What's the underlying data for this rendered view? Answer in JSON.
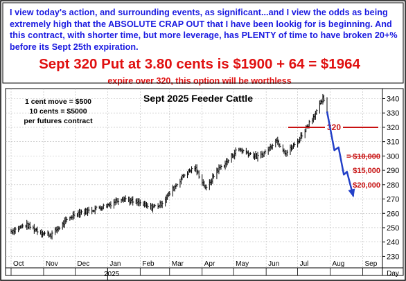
{
  "header": {
    "note": "I view today's action, and surrounding events, as significant...and I view the odds as being extremely high that the ABSOLUTE CRAP OUT that I have been lookig for is beginning. And this contract, with shorter time, but more leverage, has PLENTY of time to have broken 20+% before its Sept 25th expiration.",
    "headline": "Sept 320 Put at 3.80 cents is $1900 + 64 = $1964",
    "subline": "expire over 320, this option will be worthless"
  },
  "chart_data": {
    "type": "bar",
    "title": "Sept 2025 Feeder Cattle",
    "annotations": {
      "cent_move": "1 cent move = $500",
      "ten_cents": "10 cents = $5000",
      "per_contract": "per futures contract",
      "strike_label": "320",
      "target_10k": "$10,000",
      "target_15k": "$15,000",
      "target_20k": "$20,000"
    },
    "y_axis": {
      "ticks": [
        230,
        240,
        250,
        260,
        270,
        280,
        290,
        300,
        310,
        320,
        330,
        340
      ],
      "ylim": [
        222,
        347
      ]
    },
    "x_axis": {
      "months": [
        "Oct",
        "Nov",
        "Dec",
        "Jan",
        "Feb",
        "Mar",
        "Apr",
        "May",
        "Jun",
        "Jul",
        "Aug",
        "Sep"
      ],
      "year_label": "2025",
      "unit_label": "Day"
    },
    "strike_price": 320,
    "projection_path": [
      {
        "x": "Jul 29",
        "y": 331
      },
      {
        "x": "Aug 5",
        "y": 304
      },
      {
        "x": "Aug 9",
        "y": 306
      },
      {
        "x": "Aug 14",
        "y": 287
      },
      {
        "x": "Aug 17",
        "y": 289
      },
      {
        "x": "Aug 23",
        "y": 272
      }
    ],
    "target_levels": [
      {
        "label": "$10,000",
        "price": 300
      },
      {
        "label": "$15,000",
        "price": 290
      },
      {
        "label": "$20,000",
        "price": 280
      }
    ],
    "price_series": [
      {
        "date": "Oct 1",
        "close": 247.5
      },
      {
        "date": "Oct 15",
        "close": 252
      },
      {
        "date": "Nov 1",
        "close": 246
      },
      {
        "date": "Nov 8",
        "close": 245
      },
      {
        "date": "Nov 20",
        "close": 253
      },
      {
        "date": "Dec 1",
        "close": 260
      },
      {
        "date": "Dec 15",
        "close": 262
      },
      {
        "date": "Jan 2",
        "close": 266
      },
      {
        "date": "Jan 15",
        "close": 271
      },
      {
        "date": "Jan 25",
        "close": 268
      },
      {
        "date": "Feb 1",
        "close": 267
      },
      {
        "date": "Feb 10",
        "close": 264
      },
      {
        "date": "Feb 20",
        "close": 266
      },
      {
        "date": "Mar 1",
        "close": 274
      },
      {
        "date": "Mar 15",
        "close": 287
      },
      {
        "date": "Mar 25",
        "close": 292
      },
      {
        "date": "Apr 5",
        "close": 277
      },
      {
        "date": "Apr 15",
        "close": 290
      },
      {
        "date": "Apr 25",
        "close": 296
      },
      {
        "date": "May 5",
        "close": 305
      },
      {
        "date": "May 15",
        "close": 302
      },
      {
        "date": "May 25",
        "close": 299
      },
      {
        "date": "Jun 5",
        "close": 306
      },
      {
        "date": "Jun 10",
        "close": 312
      },
      {
        "date": "Jun 20",
        "close": 302
      },
      {
        "date": "Jul 1",
        "close": 310
      },
      {
        "date": "Jul 10",
        "close": 321
      },
      {
        "date": "Jul 20",
        "close": 332
      },
      {
        "date": "Jul 25",
        "close": 340
      },
      {
        "date": "Jul 29",
        "close": 331
      }
    ]
  }
}
